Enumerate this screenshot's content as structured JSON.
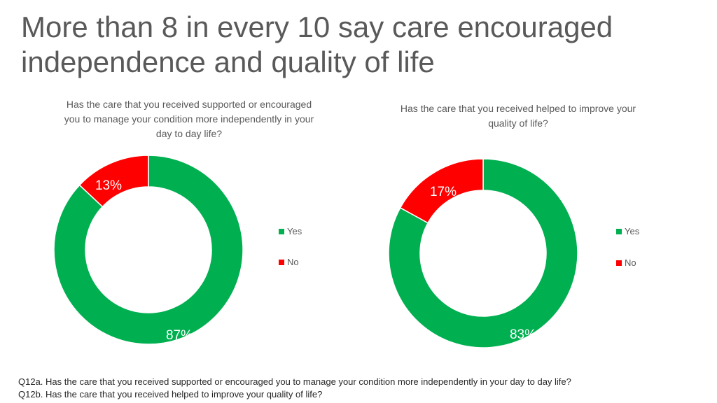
{
  "title": "More than 8 in every 10 say care encouraged independence and quality of life",
  "colors": {
    "yes": "#00b050",
    "no": "#ff0000"
  },
  "chart_data": [
    {
      "type": "pie",
      "title": "Has the care that you received supported or encouraged you to manage your condition more independently in your day to day life?",
      "categories": [
        "Yes",
        "No"
      ],
      "values": [
        87,
        13
      ],
      "data_labels": [
        "87%",
        "13%"
      ],
      "legend": [
        "Yes",
        "No"
      ],
      "legend_position": "right",
      "donut": true
    },
    {
      "type": "pie",
      "title": "Has the care that you received helped to improve your quality of life?",
      "categories": [
        "Yes",
        "No"
      ],
      "values": [
        83,
        17
      ],
      "data_labels": [
        "83%",
        "17%"
      ],
      "legend": [
        "Yes",
        "No"
      ],
      "legend_position": "right",
      "donut": true
    }
  ],
  "footnotes": [
    "Q12a. Has the care that you received supported or encouraged you to manage your condition more independently in your day to day life?",
    "Q12b. Has the care that you received helped to improve your quality of life?"
  ]
}
